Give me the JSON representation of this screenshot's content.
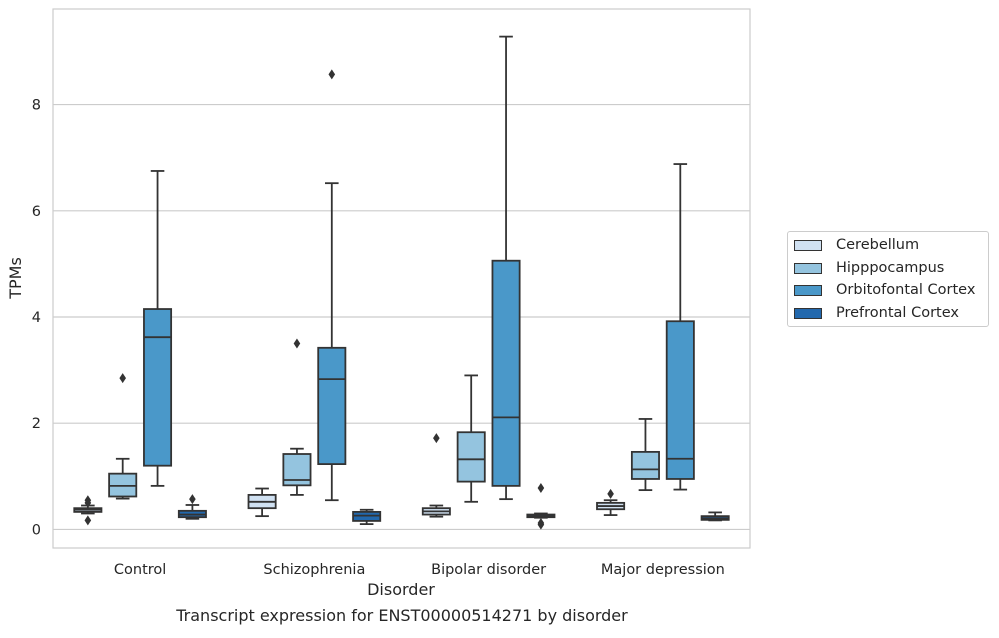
{
  "chart_data": {
    "type": "box",
    "title": "Transcript expression for ENST00000514271 by disorder",
    "xlabel": "Disorder",
    "ylabel": "TPMs",
    "ylim": [
      -0.35,
      9.8
    ],
    "yticks": [
      "0",
      "2",
      "4",
      "6",
      "8"
    ],
    "grid": "horizontal",
    "legend_position": "right",
    "categories": [
      "Control",
      "Schizophrenia",
      "Bipolar disorder",
      "Major depression"
    ],
    "series": [
      {
        "name": "Cerebellum",
        "color": "#d0e1f2",
        "boxes": [
          {
            "whislo": 0.3,
            "q1": 0.33,
            "med": 0.37,
            "q3": 0.4,
            "whishi": 0.45,
            "fliers": [
              0.55,
              0.5,
              0.17
            ]
          },
          {
            "whislo": 0.25,
            "q1": 0.4,
            "med": 0.52,
            "q3": 0.65,
            "whishi": 0.77,
            "fliers": []
          },
          {
            "whislo": 0.24,
            "q1": 0.28,
            "med": 0.34,
            "q3": 0.4,
            "whishi": 0.45,
            "fliers": [
              1.72
            ]
          },
          {
            "whislo": 0.27,
            "q1": 0.38,
            "med": 0.44,
            "q3": 0.5,
            "whishi": 0.55,
            "fliers": [
              0.67
            ]
          }
        ]
      },
      {
        "name": "Hipppocampus",
        "color": "#94c4df",
        "boxes": [
          {
            "whislo": 0.58,
            "q1": 0.62,
            "med": 0.82,
            "q3": 1.05,
            "whishi": 1.33,
            "fliers": [
              2.85
            ]
          },
          {
            "whislo": 0.65,
            "q1": 0.83,
            "med": 0.93,
            "q3": 1.42,
            "whishi": 1.52,
            "fliers": [
              3.5
            ]
          },
          {
            "whislo": 0.52,
            "q1": 0.9,
            "med": 1.32,
            "q3": 1.83,
            "whishi": 2.9,
            "fliers": []
          },
          {
            "whislo": 0.74,
            "q1": 0.95,
            "med": 1.13,
            "q3": 1.46,
            "whishi": 2.08,
            "fliers": []
          }
        ]
      },
      {
        "name": "Orbitofontal Cortex",
        "color": "#4a98c9",
        "boxes": [
          {
            "whislo": 0.82,
            "q1": 1.2,
            "med": 3.62,
            "q3": 4.15,
            "whishi": 6.75,
            "fliers": []
          },
          {
            "whislo": 0.55,
            "q1": 1.23,
            "med": 2.83,
            "q3": 3.42,
            "whishi": 6.52,
            "fliers": [
              8.57
            ]
          },
          {
            "whislo": 0.57,
            "q1": 0.82,
            "med": 2.11,
            "q3": 5.06,
            "whishi": 9.28,
            "fliers": []
          },
          {
            "whislo": 0.75,
            "q1": 0.95,
            "med": 1.33,
            "q3": 3.92,
            "whishi": 6.88,
            "fliers": []
          }
        ]
      },
      {
        "name": "Prefrontal Cortex",
        "color": "#2268ad",
        "boxes": [
          {
            "whislo": 0.2,
            "q1": 0.23,
            "med": 0.28,
            "q3": 0.35,
            "whishi": 0.46,
            "fliers": [
              0.57
            ]
          },
          {
            "whislo": 0.1,
            "q1": 0.16,
            "med": 0.26,
            "q3": 0.33,
            "whishi": 0.37,
            "fliers": []
          },
          {
            "whislo": 0.22,
            "q1": 0.23,
            "med": 0.25,
            "q3": 0.28,
            "whishi": 0.3,
            "fliers": [
              0.78,
              0.12,
              0.09
            ]
          },
          {
            "whislo": 0.17,
            "q1": 0.18,
            "med": 0.21,
            "q3": 0.25,
            "whishi": 0.32,
            "fliers": []
          }
        ]
      }
    ]
  }
}
